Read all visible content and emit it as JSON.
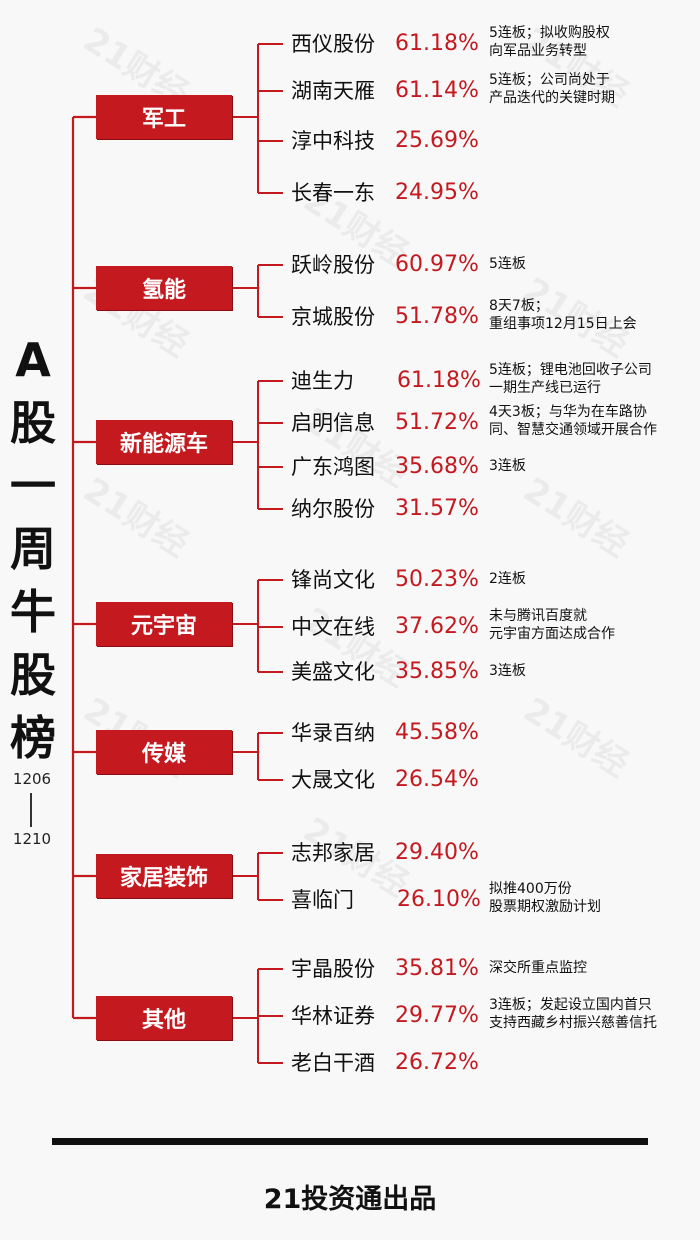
{
  "title_chars": [
    "A",
    "股",
    "一",
    "周",
    "牛",
    "股",
    "榜"
  ],
  "date_start": "1206",
  "date_end": "1210",
  "watermark": "21财经",
  "footer": "21投资通出品",
  "categories": [
    {
      "name": "军工",
      "stocks": [
        {
          "name": "西仪股份",
          "pct": "61.18%",
          "note": [
            "5连板；拟收购股权",
            "向军品业务转型"
          ]
        },
        {
          "name": "湖南天雁",
          "pct": "61.14%",
          "note": [
            "5连板；公司尚处于",
            "产品迭代的关键时期"
          ]
        },
        {
          "name": "淳中科技",
          "pct": "25.69%",
          "note": []
        },
        {
          "name": "长春一东",
          "pct": "24.95%",
          "note": []
        }
      ]
    },
    {
      "name": "氢能",
      "stocks": [
        {
          "name": "跃岭股份",
          "pct": "60.97%",
          "note": [
            "5连板"
          ]
        },
        {
          "name": "京城股份",
          "pct": "51.78%",
          "note": [
            "8天7板；",
            "重组事项12月15日上会"
          ]
        }
      ]
    },
    {
      "name": "新能源车",
      "stocks": [
        {
          "name": "迪生力",
          "pct": "61.18%",
          "note": [
            "5连板；锂电池回收子公司",
            "一期生产线已运行"
          ]
        },
        {
          "name": "启明信息",
          "pct": "51.72%",
          "note": [
            "4天3板；与华为在车路协",
            "同、智慧交通领域开展合作"
          ]
        },
        {
          "name": "广东鸿图",
          "pct": "35.68%",
          "note": [
            "3连板"
          ]
        },
        {
          "name": "纳尔股份",
          "pct": "31.57%",
          "note": []
        }
      ]
    },
    {
      "name": "元宇宙",
      "stocks": [
        {
          "name": "锋尚文化",
          "pct": "50.23%",
          "note": [
            "2连板"
          ]
        },
        {
          "name": "中文在线",
          "pct": "37.62%",
          "note": [
            "未与腾讯百度就",
            "元宇宙方面达成合作"
          ]
        },
        {
          "name": "美盛文化",
          "pct": "35.85%",
          "note": [
            "3连板"
          ]
        }
      ]
    },
    {
      "name": "传媒",
      "stocks": [
        {
          "name": "华录百纳",
          "pct": "45.58%",
          "note": []
        },
        {
          "name": "大晟文化",
          "pct": "26.54%",
          "note": []
        }
      ]
    },
    {
      "name": "家居装饰",
      "stocks": [
        {
          "name": "志邦家居",
          "pct": "29.40%",
          "note": []
        },
        {
          "name": "喜临门",
          "pct": "26.10%",
          "note": [
            "拟推400万份",
            "股票期权激励计划"
          ]
        }
      ]
    },
    {
      "name": "其他",
      "stocks": [
        {
          "name": "宇晶股份",
          "pct": "35.81%",
          "note": [
            "深交所重点监控"
          ]
        },
        {
          "name": "华林证券",
          "pct": "29.77%",
          "note": [
            "3连板；发起设立国内首只",
            "支持西藏乡村振兴慈善信托"
          ]
        },
        {
          "name": "老白干酒",
          "pct": "26.72%",
          "note": []
        }
      ]
    }
  ]
}
